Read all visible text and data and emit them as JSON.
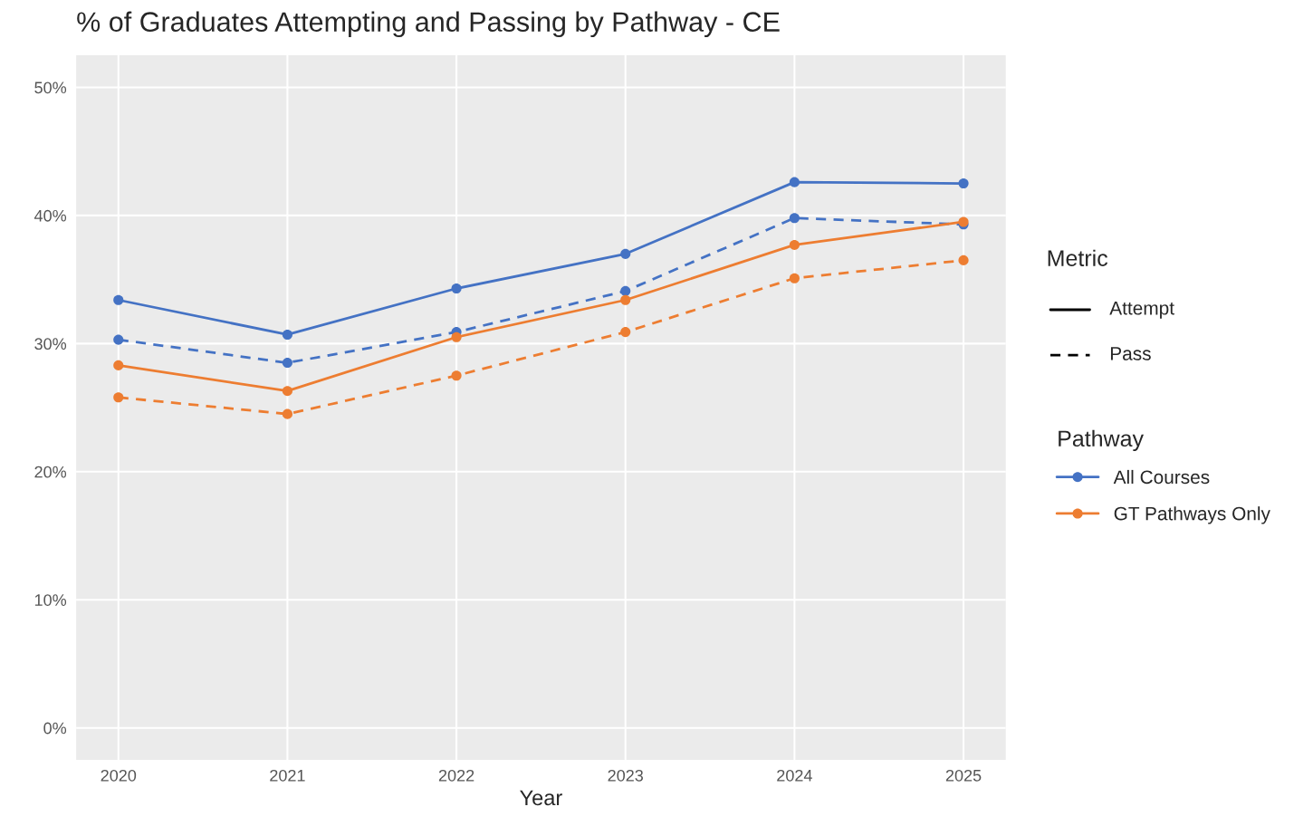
{
  "chart_data": {
    "type": "line",
    "title": "% of Graduates Attempting and Passing by Pathway - CE",
    "xlabel": "Year",
    "x": [
      2020,
      2021,
      2022,
      2023,
      2024,
      2025
    ],
    "series": [
      {
        "name": "All Courses",
        "color": "#4472c4",
        "line_style": "solid",
        "values": [
          33.4,
          30.7,
          34.3,
          37.0,
          42.6,
          42.5
        ]
      },
      {
        "color": "#4472c4",
        "line_style": "dashed",
        "values": [
          30.3,
          28.5,
          30.9,
          34.1,
          39.8,
          39.3
        ]
      },
      {
        "name": "GT Pathways Only",
        "color": "#ed7d31",
        "line_style": "solid",
        "values": [
          28.3,
          26.3,
          30.5,
          33.4,
          37.7,
          39.5
        ]
      },
      {
        "color": "#ed7d31",
        "line_style": "dashed",
        "values": [
          25.8,
          24.5,
          27.5,
          30.9,
          35.1,
          36.5
        ]
      }
    ],
    "annotations": [
      "Metric",
      "Attempt",
      "Pass"
    ],
    "legend_title": "Pathway",
    "legend": "right",
    "marker": "circle",
    "grid": true,
    "xlim": [
      2019.75,
      2025.25
    ],
    "xticks": [
      2020,
      2021,
      2022,
      2023,
      2024,
      2025
    ],
    "ylim": [
      -2.5,
      52.5
    ],
    "yticks": [
      {
        "value": 0,
        "label": "0%"
      },
      {
        "value": 10,
        "label": "10%"
      },
      {
        "value": 20,
        "label": "20%"
      },
      {
        "value": 30,
        "label": "30%"
      },
      {
        "value": 40,
        "label": "40%"
      },
      {
        "value": 50,
        "label": "50%"
      }
    ]
  }
}
